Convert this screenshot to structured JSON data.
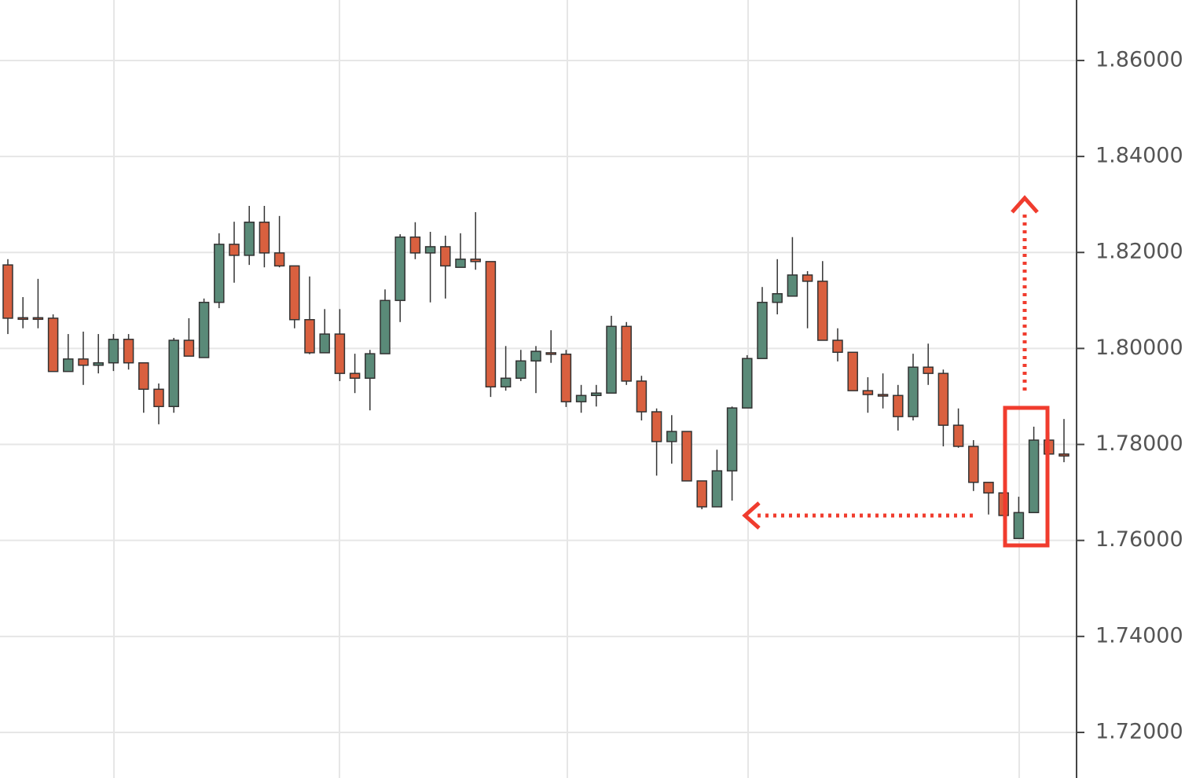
{
  "chart_data": {
    "type": "candlestick",
    "up_color": "#5a8a78",
    "down_color": "#d9603f",
    "ylim": [
      1.7105,
      1.8726
    ],
    "yticks": [
      {
        "value": 1.72,
        "label": "1.72000"
      },
      {
        "value": 1.74,
        "label": "1.74000"
      },
      {
        "value": 1.76,
        "label": "1.76000"
      },
      {
        "value": 1.78,
        "label": "1.78000"
      },
      {
        "value": 1.8,
        "label": "1.80000"
      },
      {
        "value": 1.82,
        "label": "1.82000"
      },
      {
        "value": 1.84,
        "label": "1.84000"
      },
      {
        "value": 1.86,
        "label": "1.86000"
      }
    ],
    "grid": true,
    "open": [
      1.8174,
      1.8064,
      1.8064,
      1.8063,
      1.7952,
      1.7978,
      1.7965,
      1.797,
      1.8019,
      1.797,
      1.7915,
      1.7879,
      1.8017,
      1.7981,
      1.8096,
      1.8217,
      1.8194,
      1.8263,
      1.8199,
      1.8172,
      1.806,
      1.7991,
      1.803,
      1.7948,
      1.7938,
      1.7989,
      1.81,
      1.8232,
      1.8199,
      1.8212,
      1.8169,
      1.8186,
      1.8181,
      1.792,
      1.7938,
      1.7974,
      1.7991,
      1.7988,
      1.7889,
      1.7902,
      1.7907,
      1.8046,
      1.7932,
      1.7868,
      1.7806,
      1.7827,
      1.7724,
      1.767,
      1.7745,
      1.7876,
      1.7979,
      1.8096,
      1.8109,
      1.8153,
      1.814,
      1.8017,
      1.7992,
      1.7912,
      1.7904,
      1.7902,
      1.7858,
      1.7961,
      1.7948,
      1.784,
      1.7796,
      1.7721,
      1.7699,
      1.7604,
      1.7658,
      1.7809,
      1.778
    ],
    "high": [
      1.8186,
      1.8107,
      1.8145,
      1.8071,
      1.803,
      1.8035,
      1.803,
      1.803,
      1.803,
      1.797,
      1.7927,
      1.8022,
      1.8063,
      1.8104,
      1.824,
      1.8264,
      1.8297,
      1.8297,
      1.8276,
      1.8172,
      1.815,
      1.8082,
      1.8082,
      1.7989,
      1.7997,
      1.8123,
      1.8238,
      1.8263,
      1.8243,
      1.8235,
      1.824,
      1.8284,
      1.8181,
      1.8005,
      1.7997,
      1.8005,
      1.8038,
      1.7997,
      1.7924,
      1.7924,
      1.8068,
      1.8055,
      1.7943,
      1.7875,
      1.7861,
      1.7827,
      1.7724,
      1.7789,
      1.7879,
      1.7986,
      1.8128,
      1.8186,
      1.8232,
      1.8161,
      1.8182,
      1.8042,
      1.7992,
      1.794,
      1.7948,
      1.7924,
      1.7989,
      1.801,
      1.7956,
      1.7875,
      1.7809,
      1.7721,
      1.7699,
      1.7691,
      1.7837,
      1.7825,
      1.7853
    ],
    "low": [
      1.803,
      1.8042,
      1.8042,
      1.7952,
      1.7952,
      1.7924,
      1.7948,
      1.7953,
      1.7956,
      1.7866,
      1.7842,
      1.7866,
      1.7984,
      1.7981,
      1.8084,
      1.8137,
      1.8174,
      1.8169,
      1.8169,
      1.8042,
      1.7988,
      1.7991,
      1.7932,
      1.7907,
      1.7871,
      1.7989,
      1.8055,
      1.8186,
      1.8096,
      1.8104,
      1.8169,
      1.8164,
      1.7899,
      1.7912,
      1.7932,
      1.7907,
      1.797,
      1.7878,
      1.7866,
      1.7879,
      1.7907,
      1.7924,
      1.785,
      1.7735,
      1.776,
      1.7724,
      1.7665,
      1.767,
      1.7683,
      1.7876,
      1.7979,
      1.8071,
      1.8109,
      1.8042,
      1.8017,
      1.7973,
      1.7912,
      1.7866,
      1.7875,
      1.7829,
      1.785,
      1.7924,
      1.7796,
      1.7793,
      1.7703,
      1.7654,
      1.7645,
      1.7604,
      1.7658,
      1.778,
      1.7763
    ],
    "close": [
      1.8063,
      1.8063,
      1.8063,
      1.7952,
      1.7978,
      1.7965,
      1.797,
      1.8019,
      1.797,
      1.7915,
      1.7879,
      1.8017,
      1.7984,
      1.8096,
      1.8217,
      1.8194,
      1.8263,
      1.8199,
      1.8172,
      1.806,
      1.7991,
      1.803,
      1.7948,
      1.7938,
      1.7989,
      1.81,
      1.8232,
      1.8199,
      1.8212,
      1.8172,
      1.8186,
      1.8181,
      1.792,
      1.7938,
      1.7974,
      1.7994,
      1.7988,
      1.7889,
      1.7902,
      1.7907,
      1.8046,
      1.7932,
      1.7868,
      1.7806,
      1.7827,
      1.7724,
      1.767,
      1.7745,
      1.7876,
      1.7979,
      1.8096,
      1.8114,
      1.8153,
      1.814,
      1.8017,
      1.7992,
      1.7912,
      1.7904,
      1.7902,
      1.7858,
      1.7961,
      1.7948,
      1.784,
      1.7796,
      1.7721,
      1.7699,
      1.7652,
      1.7658,
      1.7809,
      1.778,
      1.7776
    ]
  }
}
